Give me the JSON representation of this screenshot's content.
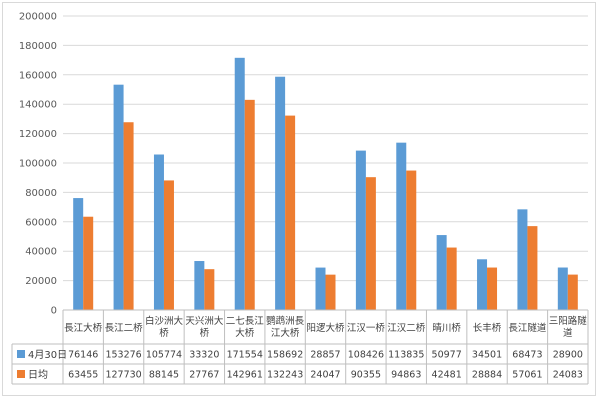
{
  "chart_data": {
    "type": "bar",
    "title": "",
    "xlabel": "",
    "ylabel": "",
    "ylim": [
      0,
      200000
    ],
    "yticks": [
      "0",
      "20000",
      "40000",
      "60000",
      "80000",
      "100000",
      "120000",
      "140000",
      "160000",
      "180000",
      "200000"
    ],
    "grid": true,
    "legend": "table-rows-left",
    "categories": [
      "長江大桥",
      "長江二桥",
      "白沙洲大桥",
      "天兴洲大桥",
      "二七長江大桥",
      "鹦鹉洲長江大桥",
      "阳逻大桥",
      "江汉一桥",
      "江汉二桥",
      "晴川桥",
      "长丰桥",
      "長江隧道",
      "三阳路隧道"
    ],
    "series": [
      {
        "name": "4月30日",
        "color": "#5b9bd5",
        "values": [
          76146,
          153276,
          105774,
          33320,
          171554,
          158692,
          28857,
          108426,
          113835,
          50977,
          34501,
          68473,
          28900
        ]
      },
      {
        "name": "日均",
        "color": "#ed7d31",
        "values": [
          63455,
          127730,
          88145,
          27767,
          142961,
          132243,
          24047,
          90355,
          94863,
          42481,
          28884,
          57061,
          24083
        ]
      }
    ]
  }
}
